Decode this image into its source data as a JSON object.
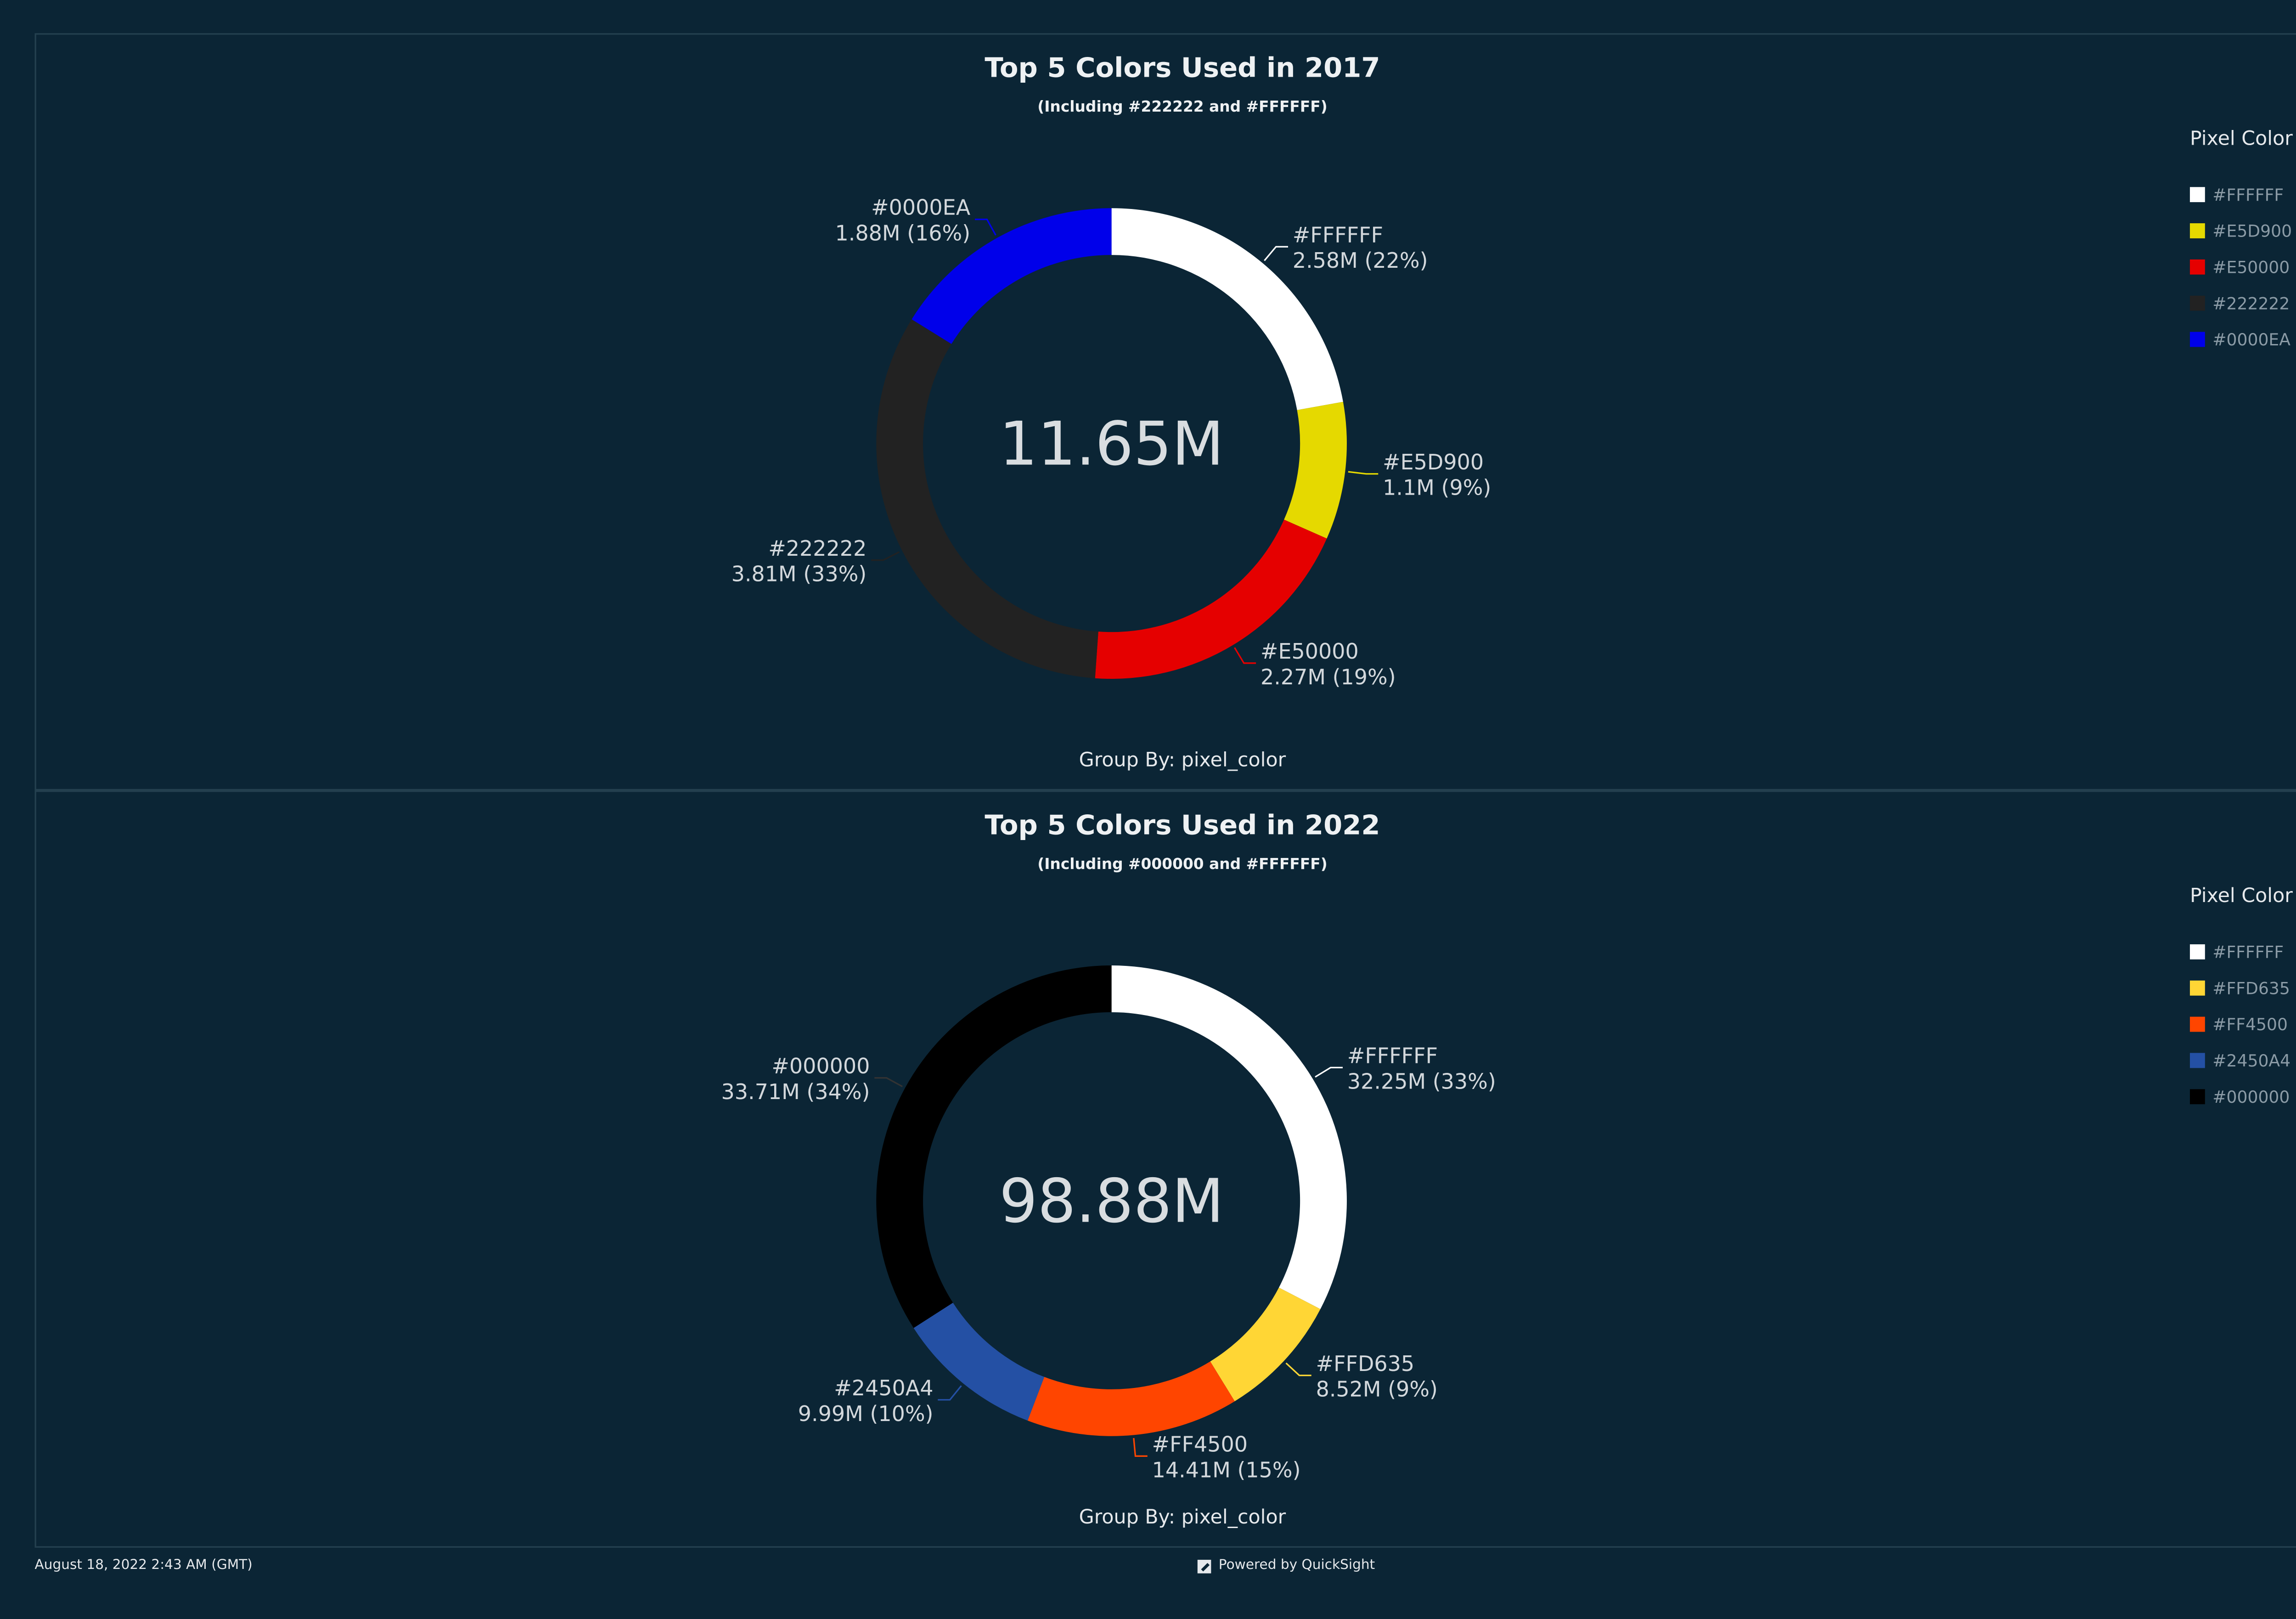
{
  "chart_data": [
    {
      "type": "pie",
      "variant": "donut",
      "title": "Top 5 Colors Used in 2017",
      "subtitle": "(Including #222222 and #FFFFFF)",
      "center_label": "11.65M",
      "group_by": "Group By: pixel_color",
      "legend": {
        "title": "Pixel Color",
        "placement": "right"
      },
      "slices": [
        {
          "name": "#FFFFFF",
          "value_label": "2.58M",
          "value": 2.58,
          "percent": 22,
          "color": "#FFFFFF"
        },
        {
          "name": "#E5D900",
          "value_label": "1.1M",
          "value": 1.1,
          "percent": 9,
          "color": "#E5D900"
        },
        {
          "name": "#E50000",
          "value_label": "2.27M",
          "value": 2.27,
          "percent": 19,
          "color": "#E50000"
        },
        {
          "name": "#222222",
          "value_label": "3.81M",
          "value": 3.81,
          "percent": 33,
          "color": "#222222"
        },
        {
          "name": "#0000EA",
          "value_label": "1.88M",
          "value": 1.88,
          "percent": 16,
          "color": "#0000EA"
        }
      ]
    },
    {
      "type": "pie",
      "variant": "donut",
      "title": "Top 5 Colors Used in 2022",
      "subtitle": "(Including #000000 and #FFFFFF)",
      "center_label": "98.88M",
      "group_by": "Group By: pixel_color",
      "legend": {
        "title": "Pixel Color",
        "placement": "right"
      },
      "slices": [
        {
          "name": "#FFFFFF",
          "value_label": "32.25M",
          "value": 32.25,
          "percent": 33,
          "color": "#FFFFFF"
        },
        {
          "name": "#FFD635",
          "value_label": "8.52M",
          "value": 8.52,
          "percent": 9,
          "color": "#FFD635"
        },
        {
          "name": "#FF4500",
          "value_label": "14.41M",
          "value": 14.41,
          "percent": 15,
          "color": "#FF4500"
        },
        {
          "name": "#2450A4",
          "value_label": "9.99M",
          "value": 9.99,
          "percent": 10,
          "color": "#2450A4"
        },
        {
          "name": "#000000",
          "value_label": "33.71M",
          "value": 33.71,
          "percent": 34,
          "color": "#000000"
        }
      ]
    }
  ],
  "footer": {
    "timestamp": "August 18, 2022 2:43 AM (GMT)",
    "powered_by": "Powered by QuickSight"
  }
}
